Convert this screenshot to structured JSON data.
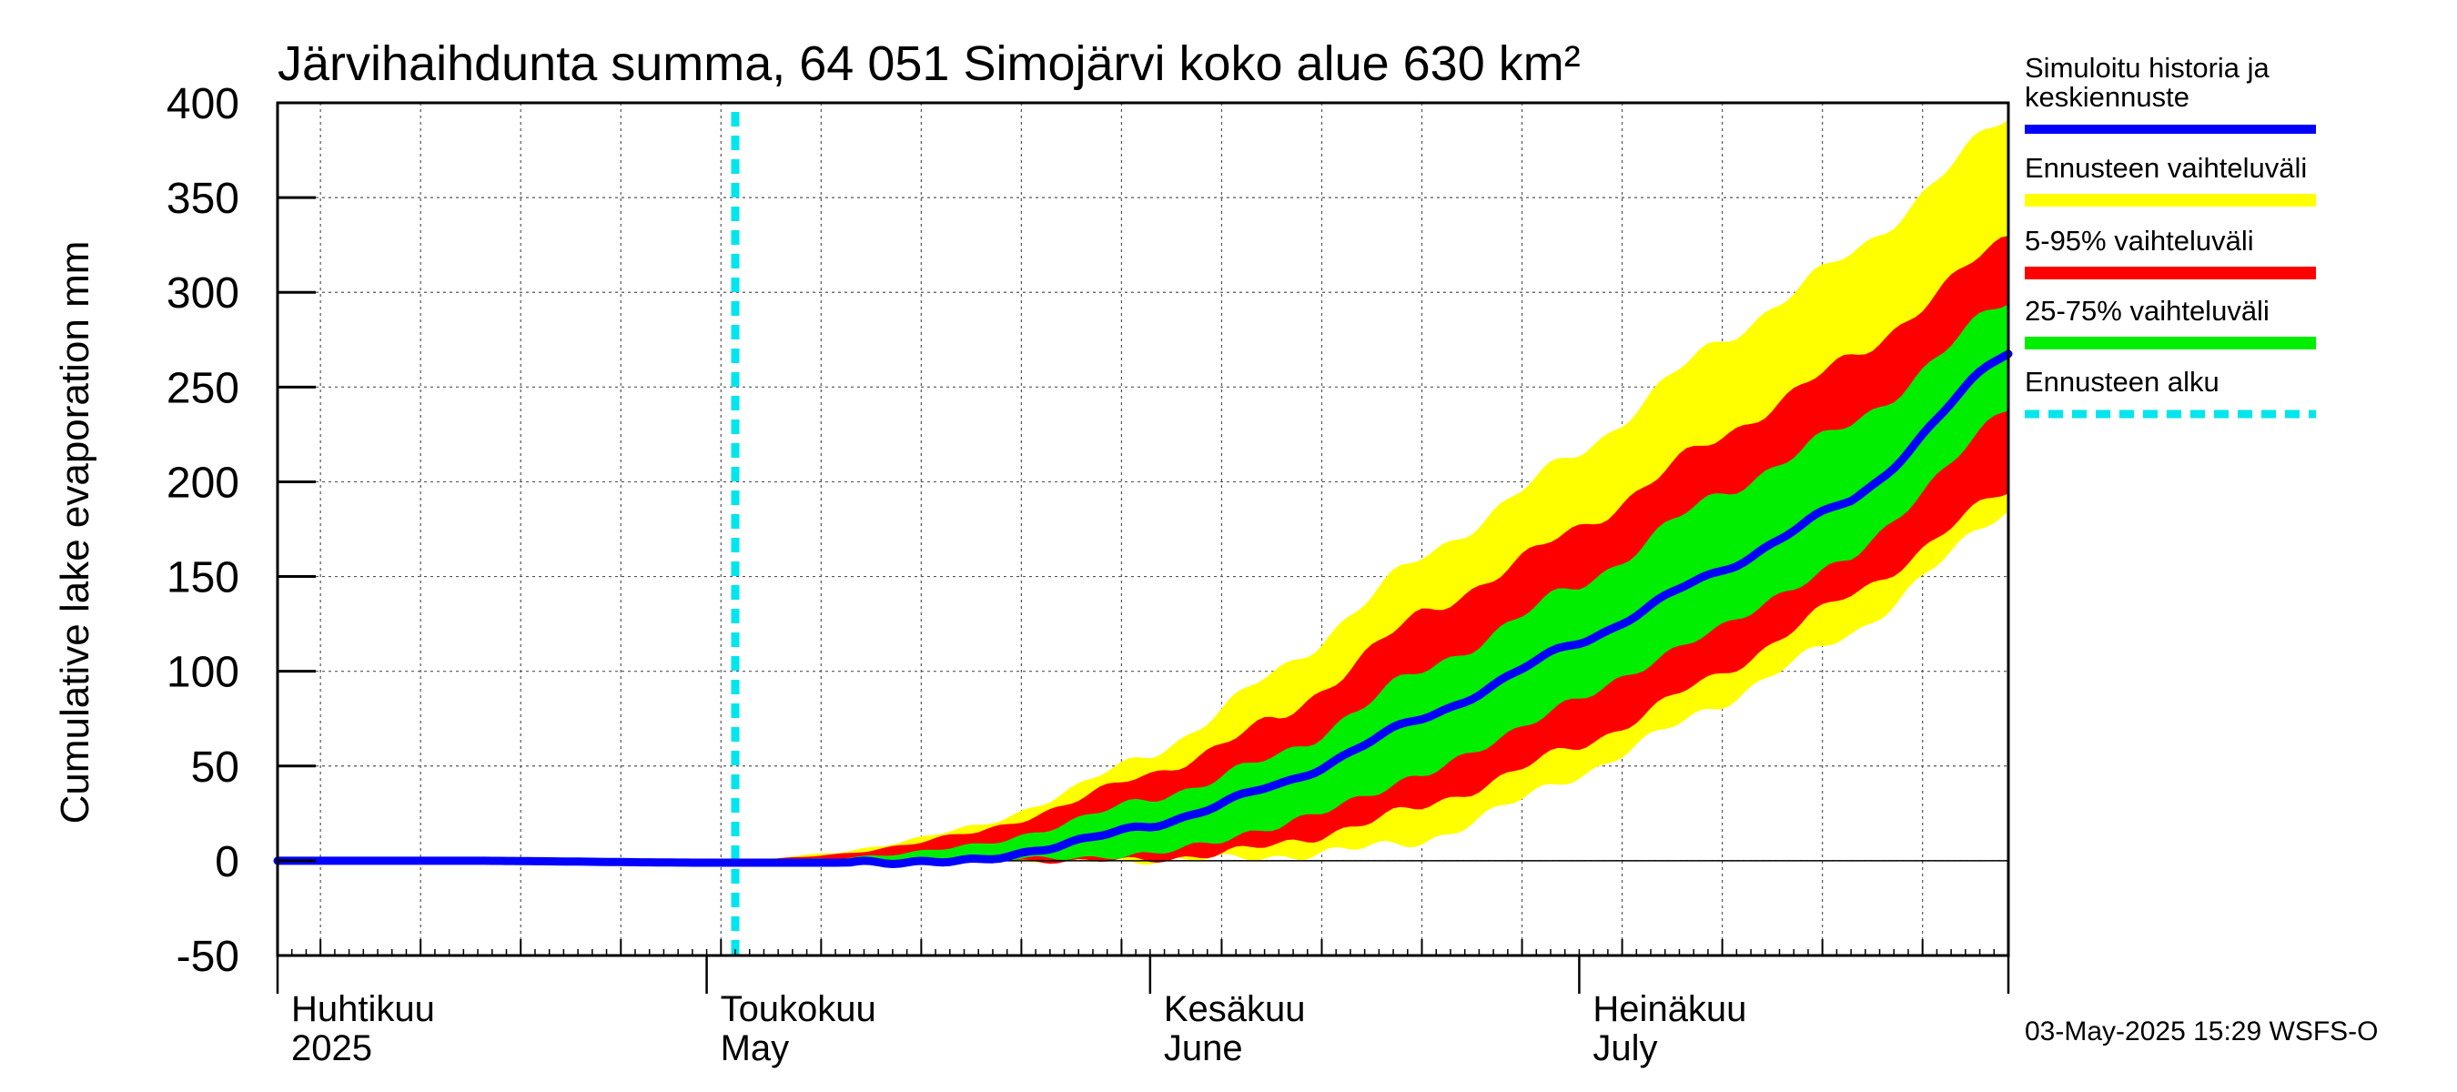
{
  "chart_data": {
    "type": "area",
    "title": "Järvihaihdunta summa, 64 051 Simojärvi koko alue 630 km²",
    "ylabel": "Cumulative lake evaporation   mm",
    "ylim": [
      -50,
      400
    ],
    "yticks": [
      "400",
      "350",
      "300",
      "250",
      "200",
      "150",
      "100",
      "50",
      "0",
      "-50"
    ],
    "ytick_values": [
      400,
      350,
      300,
      250,
      200,
      150,
      100,
      50,
      0,
      -50
    ],
    "x_range": [
      "2025-04-01",
      "2025-07-31"
    ],
    "month_labels": [
      {
        "fi": "Huhtikuu",
        "en": "2025",
        "date": "2025-04-01"
      },
      {
        "fi": "Toukokuu",
        "en": "May",
        "date": "2025-05-01"
      },
      {
        "fi": "Kesäkuu",
        "en": "June",
        "date": "2025-06-01"
      },
      {
        "fi": "Heinäkuu",
        "en": "July",
        "date": "2025-07-01"
      }
    ],
    "forecast_start": "2025-05-03",
    "grid": true,
    "legend_position": "right",
    "series": [
      {
        "name": "Ennusteen vaihteluväli",
        "color": "#ffff00",
        "x": [
          "2025-05-03",
          "2025-05-10",
          "2025-05-20",
          "2025-06-01",
          "2025-06-10",
          "2025-06-20",
          "2025-07-01",
          "2025-07-10",
          "2025-07-20",
          "2025-07-31"
        ],
        "lower": [
          0,
          0,
          0,
          0,
          2,
          10,
          45,
          80,
          120,
          185
        ],
        "upper": [
          0,
          4,
          18,
          55,
          100,
          160,
          215,
          270,
          320,
          392
        ]
      },
      {
        "name": "5-95% vaihteluväli",
        "color": "#ff0000",
        "x": [
          "2025-05-03",
          "2025-05-10",
          "2025-05-20",
          "2025-06-01",
          "2025-06-10",
          "2025-06-20",
          "2025-07-01",
          "2025-07-10",
          "2025-07-20",
          "2025-07-31"
        ],
        "lower": [
          0,
          0,
          0,
          0,
          8,
          28,
          60,
          95,
          140,
          195
        ],
        "upper": [
          0,
          3,
          15,
          45,
          75,
          130,
          175,
          220,
          265,
          328
        ]
      },
      {
        "name": "25-75% vaihteluväli",
        "color": "#00ee00",
        "x": [
          "2025-05-03",
          "2025-05-10",
          "2025-05-20",
          "2025-06-01",
          "2025-06-10",
          "2025-06-20",
          "2025-07-01",
          "2025-07-10",
          "2025-07-20",
          "2025-07-31"
        ],
        "lower": [
          0,
          0,
          0,
          3,
          18,
          45,
          85,
          120,
          160,
          238
        ],
        "upper": [
          0,
          1,
          8,
          32,
          55,
          100,
          145,
          190,
          230,
          295
        ]
      },
      {
        "name": "Simuloitu historia ja keskiennuste",
        "color": "#0000ff",
        "x": [
          "2025-04-01",
          "2025-04-15",
          "2025-04-30",
          "2025-05-03",
          "2025-05-10",
          "2025-05-20",
          "2025-06-01",
          "2025-06-10",
          "2025-06-20",
          "2025-07-01",
          "2025-07-10",
          "2025-07-20",
          "2025-07-31"
        ],
        "y": [
          0,
          0,
          -1,
          -1,
          -1,
          0,
          18,
          40,
          75,
          115,
          150,
          190,
          268
        ]
      }
    ]
  },
  "legend": {
    "median_line1": "Simuloitu historia ja",
    "median_line2": "keskiennuste",
    "range_label": "Ennusteen vaihteluväli",
    "p595_label": "5-95% vaihteluväli",
    "p2575_label": "25-75% vaihteluväli",
    "start_label": "Ennusteen alku",
    "median_color": "#0000ff",
    "range_color": "#ffff00",
    "p595_color": "#ff0000",
    "p2575_color": "#00ee00",
    "start_color": "#00e5ee"
  },
  "footer": "03-May-2025 15:29 WSFS-O"
}
